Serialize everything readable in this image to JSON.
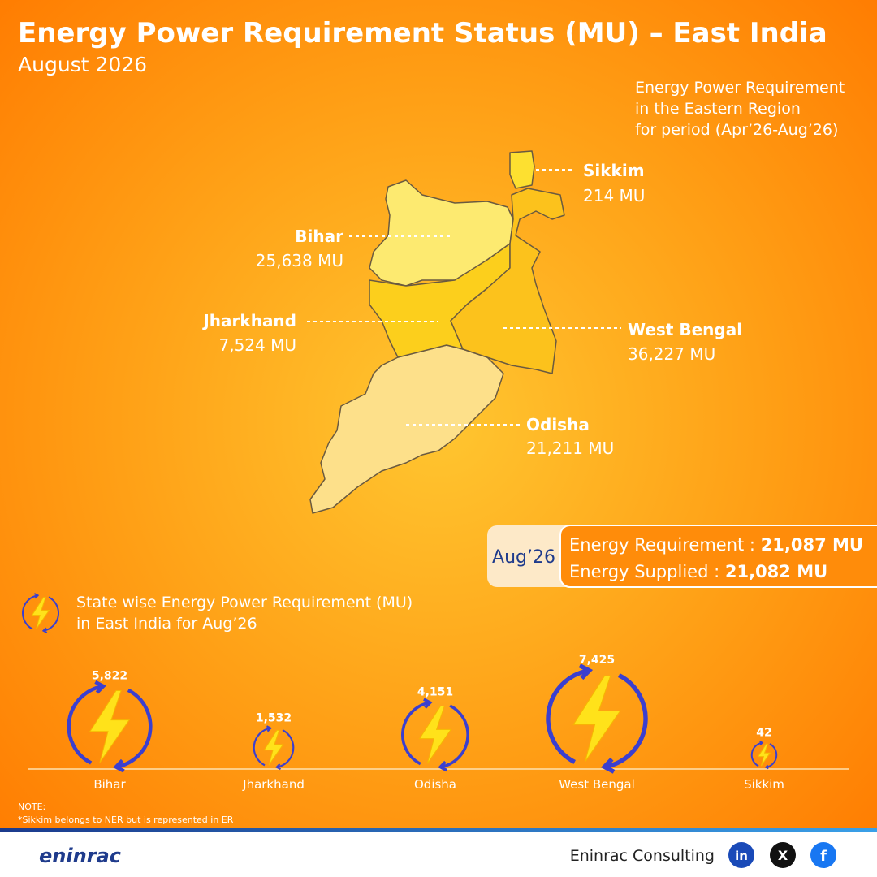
{
  "header": {
    "title": "Energy Power Requirement Status (MU) – East India",
    "subtitle": "August 2026"
  },
  "map": {
    "caption": [
      "Energy Power Requirement",
      "in the Eastern Region",
      "for period (Apr’26-Aug’26)"
    ],
    "regions": [
      {
        "name": "Sikkim",
        "label": "214 MU"
      },
      {
        "name": "Bihar",
        "label": "25,638 MU"
      },
      {
        "name": "Jharkhand",
        "label": "7,524 MU"
      },
      {
        "name": "West Bengal",
        "label": "36,227 MU"
      },
      {
        "name": "Odisha",
        "label": "21,211 MU"
      }
    ]
  },
  "summary": {
    "period": "Aug’26",
    "rows": [
      {
        "label": "Energy Requirement : ",
        "value": "21,087 MU"
      },
      {
        "label": "Energy Supplied : ",
        "value": "21,082 MU"
      }
    ]
  },
  "chart_data": {
    "type": "bubble",
    "title": [
      "State wise Energy Power Requirement (MU)",
      "in East India for Aug’26"
    ],
    "categories": [
      "Bihar",
      "Jharkhand",
      "Odisha",
      "West Bengal",
      "Sikkim"
    ],
    "values": [
      5822,
      1532,
      4151,
      7425,
      42
    ],
    "value_labels": [
      "5,822",
      "1,532",
      "4,151",
      "7,425",
      "42"
    ],
    "color": "#3b3fcf"
  },
  "note": {
    "heading": "NOTE:",
    "text": "*Sikkim belongs to NER but is represented in ER"
  },
  "footer": {
    "brand": "eninrac",
    "company": "Eninrac Consulting",
    "social": [
      "in",
      "X",
      "f"
    ]
  }
}
